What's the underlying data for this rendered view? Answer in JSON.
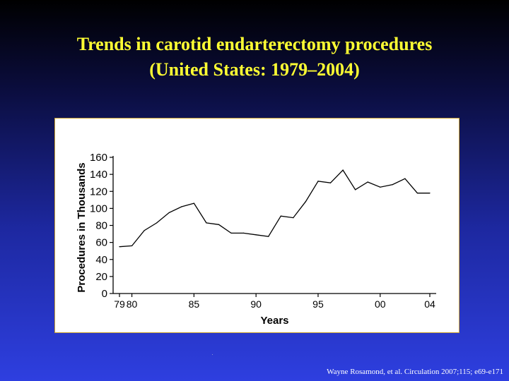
{
  "slide": {
    "title_line1": "Trends in carotid endarterectomy procedures",
    "title_line2": "(United States: 1979–2004)",
    "citation": "Wayne Rosamond, et al. Circulation  2007;115; e69-e171"
  },
  "colors": {
    "title": "#ffff33",
    "line": "#000000",
    "panel": "#ffffff"
  },
  "chart_data": {
    "type": "line",
    "title": "",
    "xlabel": "Years",
    "ylabel": "Procedures in Thousands",
    "ylim": [
      0,
      160
    ],
    "xlim": [
      1979,
      2004
    ],
    "yticks": [
      0,
      20,
      40,
      60,
      80,
      100,
      120,
      140,
      160
    ],
    "xticks": [
      {
        "value": 1979,
        "label": "79"
      },
      {
        "value": 1980,
        "label": "80"
      },
      {
        "value": 1985,
        "label": "85"
      },
      {
        "value": 1990,
        "label": "90"
      },
      {
        "value": 1995,
        "label": "95"
      },
      {
        "value": 2000,
        "label": "00"
      },
      {
        "value": 2004,
        "label": "04"
      }
    ],
    "grid": false,
    "series": [
      {
        "x": [
          1979,
          1980,
          1981,
          1982,
          1983,
          1984,
          1985,
          1986,
          1987,
          1988,
          1989,
          1990,
          1991,
          1992,
          1993,
          1994,
          1995,
          1996,
          1997,
          1998,
          1999,
          2000,
          2001,
          2002,
          2003,
          2004
        ],
        "values": [
          55,
          56,
          74,
          83,
          95,
          102,
          106,
          83,
          81,
          71,
          71,
          69,
          67,
          91,
          89,
          108,
          132,
          130,
          145,
          122,
          131,
          125,
          128,
          135,
          118,
          118
        ]
      }
    ]
  }
}
